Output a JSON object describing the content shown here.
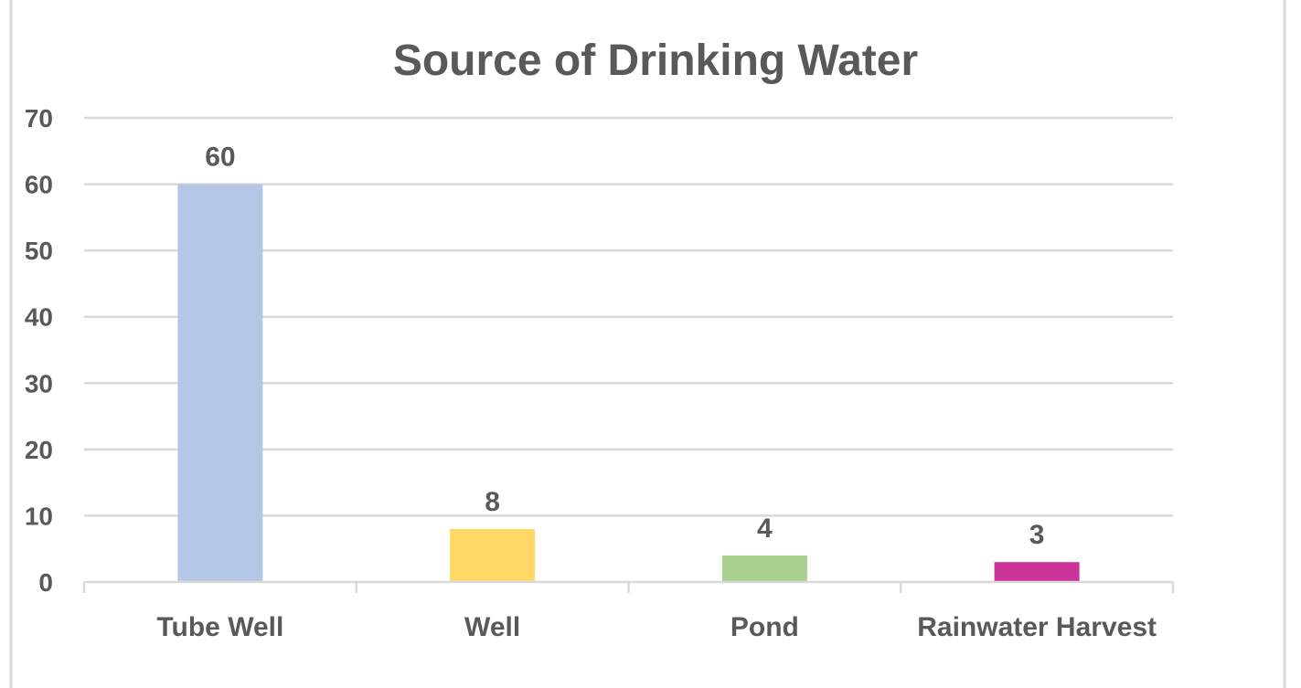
{
  "chart_data": {
    "type": "bar",
    "title": "Source of Drinking Water",
    "xlabel": "",
    "ylabel": "",
    "categories": [
      "Tube Well",
      "Well",
      "Pond",
      "Rainwater Harvest"
    ],
    "values": [
      60,
      8,
      4,
      3
    ],
    "data_labels": [
      "60",
      "8",
      "4",
      "3"
    ],
    "colors": [
      "#B4C7E7",
      "#FFD966",
      "#A9D18E",
      "#CC3399"
    ],
    "ylim": [
      0,
      70
    ],
    "yticks": [
      0,
      10,
      20,
      30,
      40,
      50,
      60,
      70
    ],
    "ytick_labels": [
      "0",
      "10",
      "20",
      "30",
      "40",
      "50",
      "60",
      "70"
    ],
    "grid": true,
    "legend": "none"
  }
}
